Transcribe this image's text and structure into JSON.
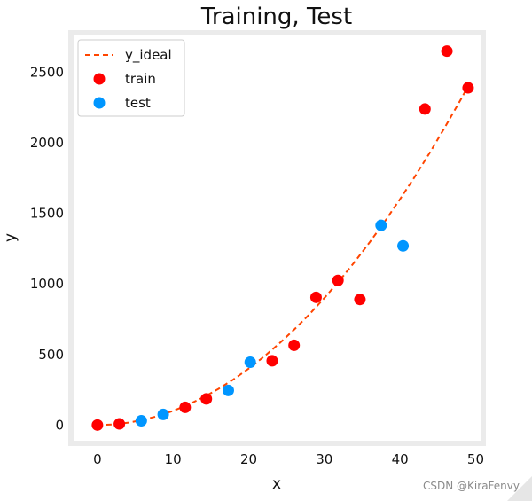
{
  "chart_data": {
    "type": "scatter",
    "title": "Training, Test",
    "xlabel": "x",
    "ylabel": "y",
    "xlim": [
      -3.5,
      51
    ],
    "ylim": [
      -130,
      2780
    ],
    "x_ticks": [
      0,
      10,
      20,
      30,
      40,
      50
    ],
    "y_ticks": [
      0,
      500,
      1000,
      1500,
      2000,
      2500
    ],
    "grid": false,
    "legend_position": "top-left",
    "series": [
      {
        "name": "y_ideal",
        "kind": "line",
        "style": "dashed",
        "color": "#ff4500",
        "x": [
          0,
          2,
          4,
          6,
          8,
          10,
          12,
          14,
          16,
          18,
          20,
          22,
          24,
          26,
          28,
          30,
          32,
          34,
          36,
          38,
          40,
          42,
          44,
          46,
          48,
          49
        ],
        "y": [
          0,
          4,
          16,
          36,
          64,
          100,
          144,
          196,
          256,
          324,
          400,
          484,
          576,
          676,
          784,
          900,
          1024,
          1156,
          1296,
          1444,
          1600,
          1764,
          1936,
          2116,
          2304,
          2401
        ]
      },
      {
        "name": "train",
        "kind": "scatter",
        "color": "#ff0000",
        "x": [
          0,
          2.9,
          11.6,
          14.4,
          23.1,
          26,
          28.9,
          31.8,
          34.7,
          43.3,
          46.2,
          49
        ],
        "y": [
          0,
          8,
          125,
          185,
          455,
          565,
          905,
          1025,
          890,
          2240,
          2650,
          2390
        ]
      },
      {
        "name": "test",
        "kind": "scatter",
        "color": "#0096ff",
        "x": [
          5.8,
          8.7,
          17.3,
          20.2,
          37.5,
          40.4
        ],
        "y": [
          30,
          75,
          245,
          445,
          1415,
          1270
        ]
      }
    ]
  },
  "watermark": "CSDN @KiraFenvy"
}
